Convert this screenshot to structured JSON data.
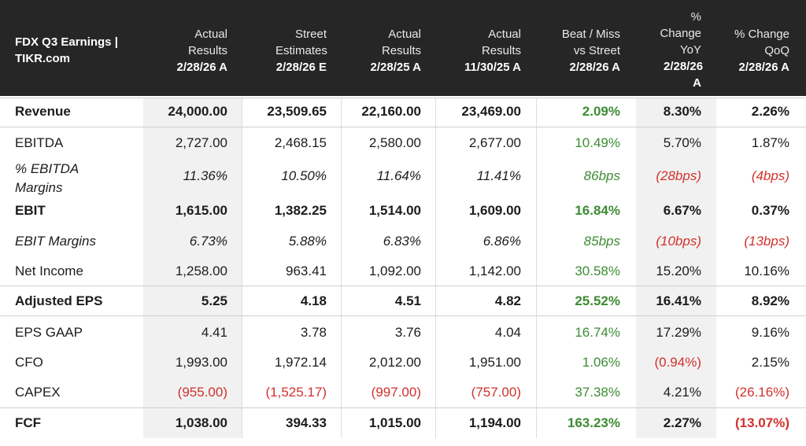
{
  "table": {
    "title": "FDX Q3 Earnings | TIKR.com",
    "columns": [
      {
        "label": "Actual Results",
        "date": "2/28/26 A"
      },
      {
        "label": "Street Estimates",
        "date": "2/28/26 E"
      },
      {
        "label": "Actual Results",
        "date": "2/28/25 A"
      },
      {
        "label": "Actual Results",
        "date": "11/30/25 A"
      },
      {
        "label": "Beat / Miss vs Street",
        "date": "2/28/26 A"
      },
      {
        "label": "% Change YoY",
        "date": "2/28/26 A"
      },
      {
        "label": "% Change QoQ",
        "date": "2/28/26 A"
      }
    ],
    "colors": {
      "header_bg": "#262626",
      "positive": "#3d8c34",
      "negative": "#d0312d",
      "shade": "#f1f1f1"
    }
  },
  "chart_data": {
    "type": "table",
    "title": "FDX Q3 Earnings | TIKR.com",
    "columns": [
      "Actual Results 2/28/26 A",
      "Street Estimates 2/28/26 E",
      "Actual Results 2/28/25 A",
      "Actual Results 11/30/25 A",
      "Beat / Miss vs Street 2/28/26 A",
      "% Change YoY 2/28/26 A",
      "% Change QoQ 2/28/26 A"
    ],
    "rows": [
      {
        "name": "Revenue",
        "values": [
          "24,000.00",
          "23,509.65",
          "22,160.00",
          "23,469.00",
          "2.09%",
          "8.30%",
          "2.26%"
        ]
      },
      {
        "name": "EBITDA",
        "values": [
          "2,727.00",
          "2,468.15",
          "2,580.00",
          "2,677.00",
          "10.49%",
          "5.70%",
          "1.87%"
        ]
      },
      {
        "name": "% EBITDA Margins",
        "values": [
          "11.36%",
          "10.50%",
          "11.64%",
          "11.41%",
          "86bps",
          "(28bps)",
          "(4bps)"
        ]
      },
      {
        "name": "EBIT",
        "values": [
          "1,615.00",
          "1,382.25",
          "1,514.00",
          "1,609.00",
          "16.84%",
          "6.67%",
          "0.37%"
        ]
      },
      {
        "name": "EBIT Margins",
        "values": [
          "6.73%",
          "5.88%",
          "6.83%",
          "6.86%",
          "85bps",
          "(10bps)",
          "(13bps)"
        ]
      },
      {
        "name": "Net Income",
        "values": [
          "1,258.00",
          "963.41",
          "1,092.00",
          "1,142.00",
          "30.58%",
          "15.20%",
          "10.16%"
        ]
      },
      {
        "name": "Adjusted EPS",
        "values": [
          "5.25",
          "4.18",
          "4.51",
          "4.82",
          "25.52%",
          "16.41%",
          "8.92%"
        ]
      },
      {
        "name": "EPS GAAP",
        "values": [
          "4.41",
          "3.78",
          "3.76",
          "4.04",
          "16.74%",
          "17.29%",
          "9.16%"
        ]
      },
      {
        "name": "CFO",
        "values": [
          "1,993.00",
          "1,972.14",
          "2,012.00",
          "1,951.00",
          "1.06%",
          "(0.94%)",
          "2.15%"
        ]
      },
      {
        "name": "CAPEX",
        "values": [
          "(955.00)",
          "(1,525.17)",
          "(997.00)",
          "(757.00)",
          "37.38%",
          "4.21%",
          "(26.16%)"
        ]
      },
      {
        "name": "FCF",
        "values": [
          "1,038.00",
          "394.33",
          "1,015.00",
          "1,194.00",
          "163.23%",
          "2.27%",
          "(13.07%)"
        ]
      }
    ]
  }
}
